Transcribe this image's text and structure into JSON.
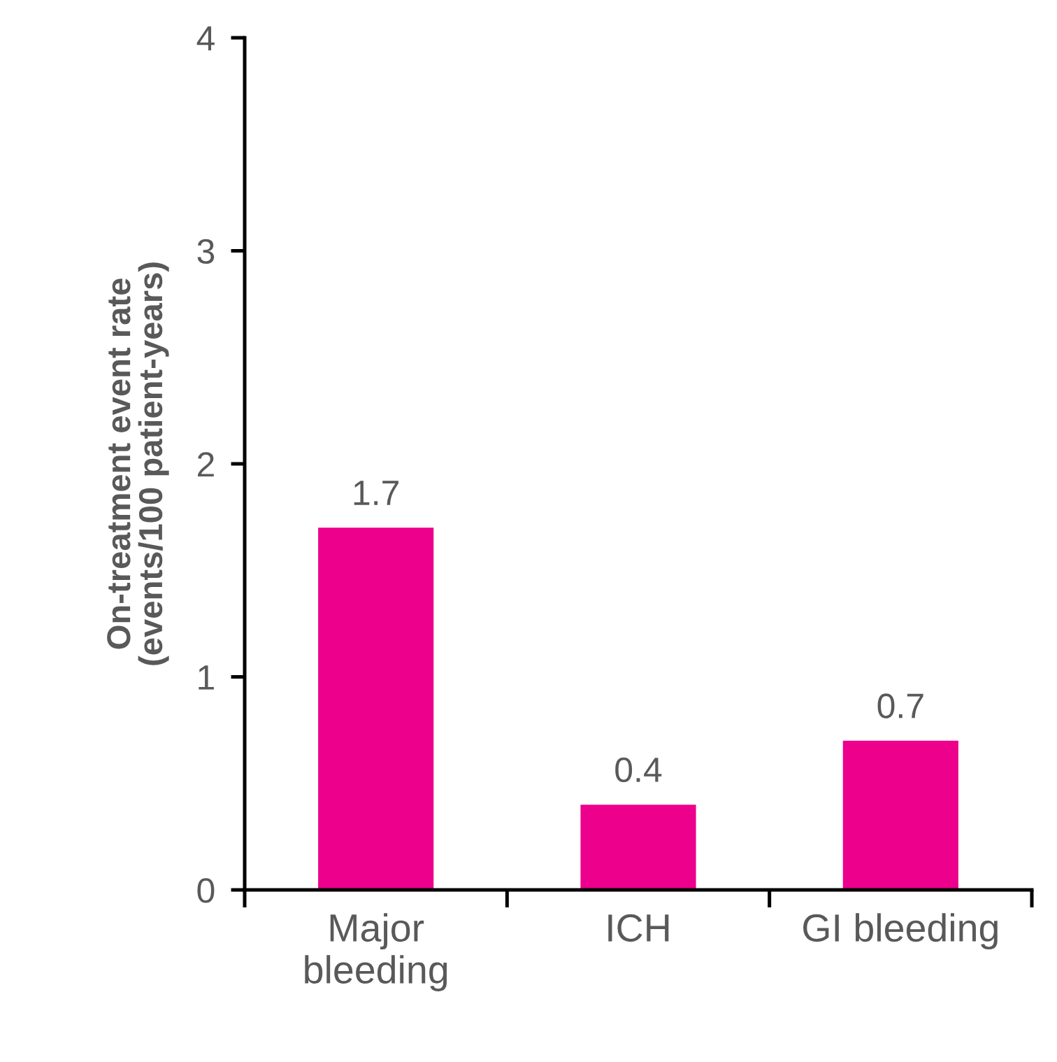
{
  "chart_data": {
    "type": "bar",
    "ylabel": "On-treatment event rate\n(events/100 patient-years)",
    "categories": [
      "Major\nbleeding",
      "ICH",
      "GI bleeding"
    ],
    "values": [
      1.7,
      0.4,
      0.7
    ],
    "color": "#ec008c",
    "ylim": [
      0,
      4
    ],
    "yticks": [
      0,
      1,
      2,
      3,
      4
    ],
    "data_labels": true,
    "grid": false
  }
}
